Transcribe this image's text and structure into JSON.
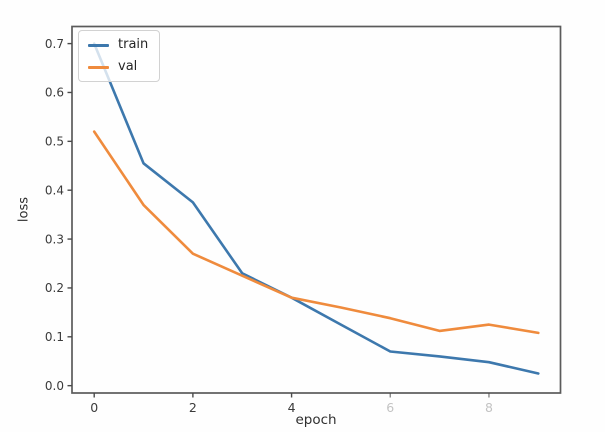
{
  "figure": {
    "background": "#fefefe",
    "spine_color": "#5b5b5b",
    "tick_color": "#4a4a4a",
    "text_color": "#2f2f2f"
  },
  "chart_data": {
    "type": "line",
    "title": "",
    "xlabel": "epoch",
    "ylabel": "loss",
    "x": [
      0,
      1,
      2,
      3,
      4,
      5,
      6,
      7,
      8,
      9
    ],
    "series": [
      {
        "name": "train",
        "color": "#3d78ad",
        "values": [
          0.7,
          0.455,
          0.375,
          0.23,
          0.18,
          0.125,
          0.07,
          0.06,
          0.048,
          0.025
        ]
      },
      {
        "name": "val",
        "color": "#ef8b3d",
        "values": [
          0.52,
          0.37,
          0.27,
          0.225,
          0.18,
          0.16,
          0.138,
          0.112,
          0.125,
          0.108
        ]
      }
    ],
    "xticks": [
      {
        "label": "0",
        "value": 0,
        "faded": false
      },
      {
        "label": "2",
        "value": 2,
        "faded": false
      },
      {
        "label": "4",
        "value": 4,
        "faded": false
      },
      {
        "label": "6",
        "value": 6,
        "faded": true
      },
      {
        "label": "8",
        "value": 8,
        "faded": true
      }
    ],
    "yticks": [
      {
        "label": "0.0",
        "value": 0.0
      },
      {
        "label": "0.1",
        "value": 0.1
      },
      {
        "label": "0.2",
        "value": 0.2
      },
      {
        "label": "0.3",
        "value": 0.3
      },
      {
        "label": "0.4",
        "value": 0.4
      },
      {
        "label": "0.5",
        "value": 0.5
      },
      {
        "label": "0.6",
        "value": 0.6
      },
      {
        "label": "0.7",
        "value": 0.7
      }
    ],
    "xlim": [
      -0.45,
      9.45
    ],
    "ylim": [
      -0.015,
      0.735
    ],
    "grid": false,
    "legend_position": "upper left",
    "legend_labels": [
      "train",
      "val"
    ]
  }
}
